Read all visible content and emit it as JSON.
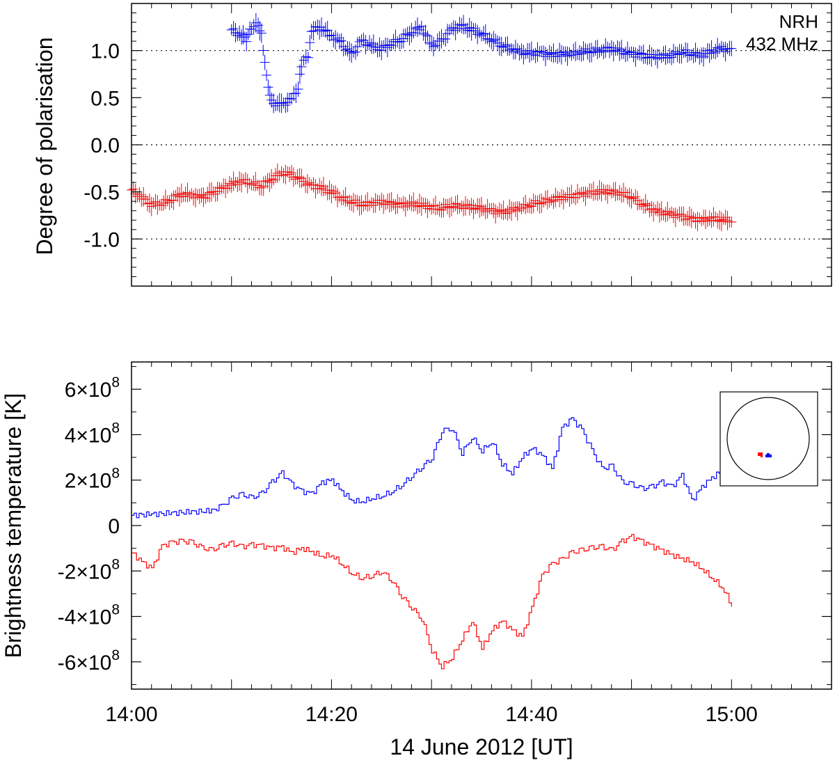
{
  "colors": {
    "positive": "#0000ff",
    "negative": "#ff0000",
    "axes": "#000000"
  },
  "x_axis": {
    "label": "14 June  2012 [UT]",
    "range_minutes": [
      0,
      70
    ],
    "major_ticks": [
      {
        "minute": 0,
        "label": "14:00"
      },
      {
        "minute": 20,
        "label": "14:20"
      },
      {
        "minute": 40,
        "label": "14:40"
      },
      {
        "minute": 60,
        "label": "15:00"
      }
    ],
    "minor_tick_step_minutes": 2
  },
  "annotation": {
    "instrument": "NRH",
    "frequency": "432 MHz"
  },
  "chart_data": [
    {
      "type": "scatter",
      "title": "",
      "ylabel": "Degree of polarisation",
      "xlim": [
        "14:00",
        "15:10"
      ],
      "ylim": [
        -1.5,
        1.5
      ],
      "yticks": [
        "1.0",
        "0.5",
        "0.0",
        "-0.5",
        "-1.0"
      ],
      "ytick_values": [
        1.0,
        0.5,
        0.0,
        -0.5,
        -1.0
      ],
      "reference_lines": [
        1.0,
        0.0,
        -1.0
      ],
      "marker": "plus with x/y error bars",
      "series": [
        {
          "color": "#0000ff",
          "points": [
            {
              "x": "14:10",
              "y": 1.22
            },
            {
              "x": "14:11",
              "y": 1.16
            },
            {
              "x": "14:11:30",
              "y": 1.12
            },
            {
              "x": "14:12",
              "y": 1.25
            },
            {
              "x": "14:12:40",
              "y": 1.28
            },
            {
              "x": "14:13",
              "y": 1.18
            },
            {
              "x": "14:13:30",
              "y": 0.72
            },
            {
              "x": "14:14",
              "y": 0.45
            },
            {
              "x": "14:15",
              "y": 0.42
            },
            {
              "x": "14:16",
              "y": 0.48
            },
            {
              "x": "14:16:40",
              "y": 0.6
            },
            {
              "x": "14:17",
              "y": 0.85
            },
            {
              "x": "14:17:40",
              "y": 0.95
            },
            {
              "x": "14:18",
              "y": 1.22
            },
            {
              "x": "14:19",
              "y": 1.25
            },
            {
              "x": "14:20",
              "y": 1.15
            },
            {
              "x": "14:21",
              "y": 1.08
            },
            {
              "x": "14:22",
              "y": 0.95
            },
            {
              "x": "14:23",
              "y": 1.1
            },
            {
              "x": "14:24",
              "y": 1.05
            },
            {
              "x": "14:25",
              "y": 1.02
            },
            {
              "x": "14:26",
              "y": 1.08
            },
            {
              "x": "14:27",
              "y": 1.12
            },
            {
              "x": "14:28",
              "y": 1.2
            },
            {
              "x": "14:29",
              "y": 1.25
            },
            {
              "x": "14:30",
              "y": 1.05
            },
            {
              "x": "14:31",
              "y": 1.1
            },
            {
              "x": "14:32",
              "y": 1.22
            },
            {
              "x": "14:33",
              "y": 1.26
            },
            {
              "x": "14:34",
              "y": 1.22
            },
            {
              "x": "14:35",
              "y": 1.18
            },
            {
              "x": "14:36",
              "y": 1.12
            },
            {
              "x": "14:37",
              "y": 1.06
            },
            {
              "x": "14:38",
              "y": 1.02
            },
            {
              "x": "14:39",
              "y": 0.98
            },
            {
              "x": "14:40",
              "y": 0.97
            },
            {
              "x": "14:41",
              "y": 0.97
            },
            {
              "x": "14:42",
              "y": 0.95
            },
            {
              "x": "14:43",
              "y": 0.96
            },
            {
              "x": "14:44",
              "y": 0.97
            },
            {
              "x": "14:45",
              "y": 0.99
            },
            {
              "x": "14:46",
              "y": 1.0
            },
            {
              "x": "14:47",
              "y": 1.01
            },
            {
              "x": "14:48",
              "y": 1.02
            },
            {
              "x": "14:49",
              "y": 0.99
            },
            {
              "x": "14:50",
              "y": 0.96
            },
            {
              "x": "14:51",
              "y": 0.95
            },
            {
              "x": "14:52",
              "y": 0.93
            },
            {
              "x": "14:53",
              "y": 0.94
            },
            {
              "x": "14:54",
              "y": 0.95
            },
            {
              "x": "14:55",
              "y": 0.99
            },
            {
              "x": "14:56",
              "y": 0.97
            },
            {
              "x": "14:57",
              "y": 0.95
            },
            {
              "x": "14:58",
              "y": 0.99
            },
            {
              "x": "14:59",
              "y": 1.02
            },
            {
              "x": "15:00",
              "y": 1.0
            }
          ]
        },
        {
          "color": "#ff0000",
          "points": [
            {
              "x": "14:00",
              "y": -0.48
            },
            {
              "x": "14:01",
              "y": -0.56
            },
            {
              "x": "14:02",
              "y": -0.63
            },
            {
              "x": "14:03",
              "y": -0.62
            },
            {
              "x": "14:04",
              "y": -0.58
            },
            {
              "x": "14:05",
              "y": -0.52
            },
            {
              "x": "14:06",
              "y": -0.54
            },
            {
              "x": "14:07",
              "y": -0.56
            },
            {
              "x": "14:08",
              "y": -0.52
            },
            {
              "x": "14:09",
              "y": -0.47
            },
            {
              "x": "14:10",
              "y": -0.42
            },
            {
              "x": "14:11",
              "y": -0.38
            },
            {
              "x": "14:12",
              "y": -0.4
            },
            {
              "x": "14:13",
              "y": -0.44
            },
            {
              "x": "14:14",
              "y": -0.36
            },
            {
              "x": "14:15",
              "y": -0.3
            },
            {
              "x": "14:16",
              "y": -0.32
            },
            {
              "x": "14:17",
              "y": -0.38
            },
            {
              "x": "14:18",
              "y": -0.44
            },
            {
              "x": "14:19",
              "y": -0.46
            },
            {
              "x": "14:20",
              "y": -0.5
            },
            {
              "x": "14:21",
              "y": -0.56
            },
            {
              "x": "14:22",
              "y": -0.6
            },
            {
              "x": "14:23",
              "y": -0.63
            },
            {
              "x": "14:24",
              "y": -0.62
            },
            {
              "x": "14:25",
              "y": -0.61
            },
            {
              "x": "14:26",
              "y": -0.63
            },
            {
              "x": "14:27",
              "y": -0.64
            },
            {
              "x": "14:28",
              "y": -0.63
            },
            {
              "x": "14:29",
              "y": -0.64
            },
            {
              "x": "14:30",
              "y": -0.66
            },
            {
              "x": "14:31",
              "y": -0.67
            },
            {
              "x": "14:32",
              "y": -0.64
            },
            {
              "x": "14:33",
              "y": -0.65
            },
            {
              "x": "14:34",
              "y": -0.66
            },
            {
              "x": "14:35",
              "y": -0.68
            },
            {
              "x": "14:36",
              "y": -0.7
            },
            {
              "x": "14:37",
              "y": -0.72
            },
            {
              "x": "14:38",
              "y": -0.7
            },
            {
              "x": "14:39",
              "y": -0.66
            },
            {
              "x": "14:40",
              "y": -0.63
            },
            {
              "x": "14:41",
              "y": -0.6
            },
            {
              "x": "14:42",
              "y": -0.58
            },
            {
              "x": "14:43",
              "y": -0.56
            },
            {
              "x": "14:44",
              "y": -0.55
            },
            {
              "x": "14:45",
              "y": -0.53
            },
            {
              "x": "14:46",
              "y": -0.51
            },
            {
              "x": "14:47",
              "y": -0.5
            },
            {
              "x": "14:48",
              "y": -0.5
            },
            {
              "x": "14:49",
              "y": -0.51
            },
            {
              "x": "14:50",
              "y": -0.55
            },
            {
              "x": "14:51",
              "y": -0.62
            },
            {
              "x": "14:52",
              "y": -0.68
            },
            {
              "x": "14:53",
              "y": -0.72
            },
            {
              "x": "14:54",
              "y": -0.74
            },
            {
              "x": "14:55",
              "y": -0.76
            },
            {
              "x": "14:56",
              "y": -0.79
            },
            {
              "x": "14:57",
              "y": -0.8
            },
            {
              "x": "14:58",
              "y": -0.78
            },
            {
              "x": "14:59",
              "y": -0.79
            },
            {
              "x": "15:00",
              "y": -0.8
            }
          ]
        }
      ]
    },
    {
      "type": "line",
      "title": "",
      "ylabel": "Brightness temperature [K]",
      "xlim": [
        "14:00",
        "15:10"
      ],
      "ylim": [
        -720000000.0,
        720000000.0
      ],
      "ytick_values": [
        600000000.0,
        400000000.0,
        200000000.0,
        0,
        -200000000.0,
        -400000000.0,
        -600000000.0
      ],
      "yticks": [
        {
          "mantissa": "6×10",
          "exponent": "8"
        },
        {
          "mantissa": "4×10",
          "exponent": "8"
        },
        {
          "mantissa": "2×10",
          "exponent": "8"
        },
        {
          "mantissa": "0",
          "exponent": ""
        },
        {
          "mantissa": "-2×10",
          "exponent": "8"
        },
        {
          "mantissa": "-4×10",
          "exponent": "8"
        },
        {
          "mantissa": "-6×10",
          "exponent": "8"
        }
      ],
      "step": true,
      "series": [
        {
          "color": "#0000ff",
          "x": [
            "14:00",
            "14:02",
            "14:04",
            "14:06",
            "14:08",
            "14:09",
            "14:10",
            "14:11",
            "14:12",
            "14:13",
            "14:14",
            "14:15",
            "14:16",
            "14:17",
            "14:18",
            "14:19",
            "14:20",
            "14:21",
            "14:22",
            "14:23",
            "14:24",
            "14:25",
            "14:26",
            "14:27",
            "14:28",
            "14:29",
            "14:30",
            "14:31",
            "14:32",
            "14:33",
            "14:34",
            "14:35",
            "14:36",
            "14:37",
            "14:38",
            "14:39",
            "14:40",
            "14:41",
            "14:42",
            "14:43",
            "14:44",
            "14:45",
            "14:46",
            "14:47",
            "14:48",
            "14:49",
            "14:50",
            "14:51",
            "14:52",
            "14:53",
            "14:54",
            "14:55",
            "14:56",
            "14:57",
            "14:58",
            "14:59",
            "15:00"
          ],
          "values": [
            45000000.0,
            50000000.0,
            55000000.0,
            60000000.0,
            65000000.0,
            85000000.0,
            120000000.0,
            135000000.0,
            120000000.0,
            140000000.0,
            190000000.0,
            230000000.0,
            180000000.0,
            150000000.0,
            140000000.0,
            190000000.0,
            200000000.0,
            150000000.0,
            110000000.0,
            105000000.0,
            120000000.0,
            130000000.0,
            150000000.0,
            180000000.0,
            220000000.0,
            260000000.0,
            300000000.0,
            420000000.0,
            430000000.0,
            320000000.0,
            390000000.0,
            330000000.0,
            370000000.0,
            270000000.0,
            230000000.0,
            300000000.0,
            340000000.0,
            310000000.0,
            250000000.0,
            430000000.0,
            470000000.0,
            420000000.0,
            330000000.0,
            250000000.0,
            260000000.0,
            190000000.0,
            180000000.0,
            160000000.0,
            170000000.0,
            190000000.0,
            170000000.0,
            220000000.0,
            110000000.0,
            170000000.0,
            210000000.0,
            240000000.0,
            200000000.0
          ]
        },
        {
          "color": "#ff0000",
          "x": [
            "14:00",
            "14:01",
            "14:02",
            "14:03",
            "14:04",
            "14:05",
            "14:06",
            "14:07",
            "14:08",
            "14:09",
            "14:10",
            "14:11",
            "14:12",
            "14:13",
            "14:14",
            "14:15",
            "14:16",
            "14:17",
            "14:18",
            "14:19",
            "14:20",
            "14:21",
            "14:22",
            "14:23",
            "14:24",
            "14:25",
            "14:26",
            "14:27",
            "14:28",
            "14:29",
            "14:30",
            "14:31",
            "14:32",
            "14:33",
            "14:34",
            "14:35",
            "14:36",
            "14:37",
            "14:38",
            "14:39",
            "14:40",
            "14:41",
            "14:42",
            "14:43",
            "14:44",
            "14:45",
            "14:46",
            "14:47",
            "14:48",
            "14:49",
            "14:50",
            "14:51",
            "14:52",
            "14:53",
            "14:54",
            "14:55",
            "14:56",
            "14:57",
            "14:58",
            "14:59",
            "15:00"
          ],
          "values": [
            -120000000.0,
            -160000000.0,
            -190000000.0,
            -90000000.0,
            -75000000.0,
            -70000000.0,
            -75000000.0,
            -100000000.0,
            -110000000.0,
            -90000000.0,
            -80000000.0,
            -95000000.0,
            -85000000.0,
            -90000000.0,
            -100000000.0,
            -95000000.0,
            -120000000.0,
            -100000000.0,
            -115000000.0,
            -135000000.0,
            -130000000.0,
            -170000000.0,
            -210000000.0,
            -230000000.0,
            -220000000.0,
            -200000000.0,
            -240000000.0,
            -310000000.0,
            -360000000.0,
            -410000000.0,
            -550000000.0,
            -620000000.0,
            -580000000.0,
            -500000000.0,
            -420000000.0,
            -540000000.0,
            -460000000.0,
            -420000000.0,
            -460000000.0,
            -490000000.0,
            -360000000.0,
            -220000000.0,
            -170000000.0,
            -150000000.0,
            -120000000.0,
            -110000000.0,
            -100000000.0,
            -95000000.0,
            -110000000.0,
            -70000000.0,
            -50000000.0,
            -70000000.0,
            -90000000.0,
            -110000000.0,
            -130000000.0,
            -145000000.0,
            -160000000.0,
            -190000000.0,
            -230000000.0,
            -270000000.0,
            -350000000.0
          ]
        }
      ],
      "inset": {
        "description": "solar disk locator",
        "markers": [
          {
            "color": "#ff0000",
            "position": "center-left of disk"
          },
          {
            "color": "#0000ff",
            "position": "center-right of disk"
          }
        ]
      }
    }
  ]
}
